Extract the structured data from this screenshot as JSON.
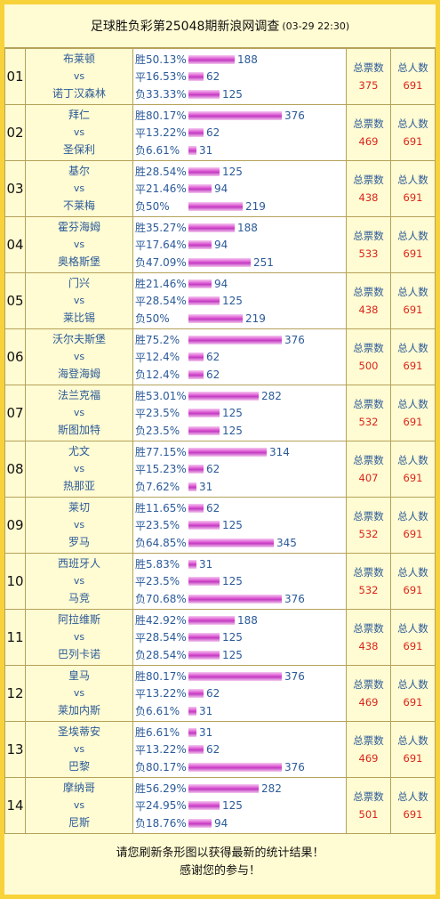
{
  "header": {
    "title": "足球胜负彩第25048期新浪网调查",
    "time": "(03-29 22:30)"
  },
  "labels": {
    "win": "胜",
    "draw": "平",
    "loss": "负",
    "vs": "vs",
    "total_votes": "总票数",
    "total_people": "总人数"
  },
  "matches": [
    {
      "num": "01",
      "home": "布莱顿",
      "away": "诺丁汉森林",
      "win_pct": "50.13%",
      "win": 188,
      "draw_pct": "16.53%",
      "draw": 62,
      "loss_pct": "33.33%",
      "loss": 125,
      "votes": "375",
      "people": "691"
    },
    {
      "num": "02",
      "home": "拜仁",
      "away": "圣保利",
      "win_pct": "80.17%",
      "win": 376,
      "draw_pct": "13.22%",
      "draw": 62,
      "loss_pct": "6.61%",
      "loss": 31,
      "votes": "469",
      "people": "691"
    },
    {
      "num": "03",
      "home": "基尔",
      "away": "不莱梅",
      "win_pct": "28.54%",
      "win": 125,
      "draw_pct": "21.46%",
      "draw": 94,
      "loss_pct": "50%",
      "loss": 219,
      "votes": "438",
      "people": "691"
    },
    {
      "num": "04",
      "home": "霍芬海姆",
      "away": "奥格斯堡",
      "win_pct": "35.27%",
      "win": 188,
      "draw_pct": "17.64%",
      "draw": 94,
      "loss_pct": "47.09%",
      "loss": 251,
      "votes": "533",
      "people": "691"
    },
    {
      "num": "05",
      "home": "门兴",
      "away": "莱比锡",
      "win_pct": "21.46%",
      "win": 94,
      "draw_pct": "28.54%",
      "draw": 125,
      "loss_pct": "50%",
      "loss": 219,
      "votes": "438",
      "people": "691"
    },
    {
      "num": "06",
      "home": "沃尔夫斯堡",
      "away": "海登海姆",
      "win_pct": "75.2%",
      "win": 376,
      "draw_pct": "12.4%",
      "draw": 62,
      "loss_pct": "12.4%",
      "loss": 62,
      "votes": "500",
      "people": "691"
    },
    {
      "num": "07",
      "home": "法兰克福",
      "away": "斯图加特",
      "win_pct": "53.01%",
      "win": 282,
      "draw_pct": "23.5%",
      "draw": 125,
      "loss_pct": "23.5%",
      "loss": 125,
      "votes": "532",
      "people": "691"
    },
    {
      "num": "08",
      "home": "尤文",
      "away": "热那亚",
      "win_pct": "77.15%",
      "win": 314,
      "draw_pct": "15.23%",
      "draw": 62,
      "loss_pct": "7.62%",
      "loss": 31,
      "votes": "407",
      "people": "691"
    },
    {
      "num": "09",
      "home": "莱切",
      "away": "罗马",
      "win_pct": "11.65%",
      "win": 62,
      "draw_pct": "23.5%",
      "draw": 125,
      "loss_pct": "64.85%",
      "loss": 345,
      "votes": "532",
      "people": "691"
    },
    {
      "num": "10",
      "home": "西班牙人",
      "away": "马竞",
      "win_pct": "5.83%",
      "win": 31,
      "draw_pct": "23.5%",
      "draw": 125,
      "loss_pct": "70.68%",
      "loss": 376,
      "votes": "532",
      "people": "691"
    },
    {
      "num": "11",
      "home": "阿拉维斯",
      "away": "巴列卡诺",
      "win_pct": "42.92%",
      "win": 188,
      "draw_pct": "28.54%",
      "draw": 125,
      "loss_pct": "28.54%",
      "loss": 125,
      "votes": "438",
      "people": "691"
    },
    {
      "num": "12",
      "home": "皇马",
      "away": "莱加内斯",
      "win_pct": "80.17%",
      "win": 376,
      "draw_pct": "13.22%",
      "draw": 62,
      "loss_pct": "6.61%",
      "loss": 31,
      "votes": "469",
      "people": "691"
    },
    {
      "num": "13",
      "home": "圣埃蒂安",
      "away": "巴黎",
      "win_pct": "6.61%",
      "win": 31,
      "draw_pct": "13.22%",
      "draw": 62,
      "loss_pct": "80.17%",
      "loss": 376,
      "votes": "469",
      "people": "691"
    },
    {
      "num": "14",
      "home": "摩纳哥",
      "away": "尼斯",
      "win_pct": "56.29%",
      "win": 282,
      "draw_pct": "24.95%",
      "draw": 125,
      "loss_pct": "18.76%",
      "loss": 94,
      "votes": "501",
      "people": "691"
    }
  ],
  "footer": {
    "line1": "请您刷新条形图以获得最新的统计结果！",
    "line2": "感谢您的参与！"
  },
  "colors": {
    "frame": "#f7d23a",
    "panel": "#fffbd2",
    "text_blue": "#2b5a99",
    "text_red": "#d9261c",
    "bar": "#d94fd0"
  }
}
